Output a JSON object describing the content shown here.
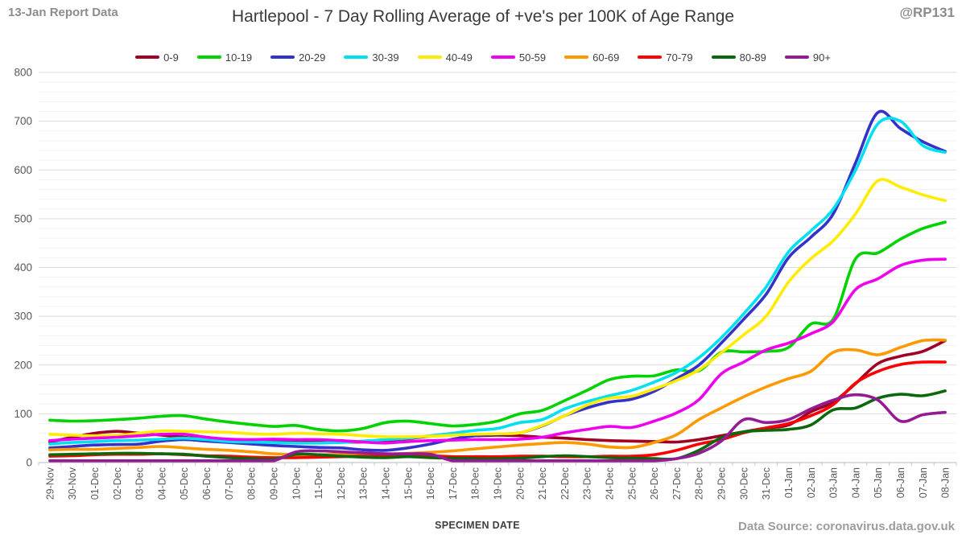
{
  "header": {
    "report_label": "13-Jan Report Data",
    "handle": "@RP131"
  },
  "title": "Hartlepool - 7 Day Rolling Average of +ve's per 100K of Age Range",
  "footer": {
    "xlabel": "SPECIMEN DATE",
    "source": "Data Source: coronavirus.data.gov.uk"
  },
  "colors": {
    "grid_minor": "#f2f2f2",
    "grid_major": "#dadada",
    "axis_line": "#c6c6c6",
    "tick_text": "#595959"
  },
  "chart_data": {
    "type": "line",
    "title": "Hartlepool - 7 Day Rolling Average of +ve's per 100K of Age Range",
    "xlabel": "SPECIMEN DATE",
    "ylabel": "",
    "ylim": [
      0,
      800
    ],
    "ytick_step": 100,
    "yminor_step": 20,
    "grid": true,
    "legend_position": "top",
    "x": [
      "29-Nov",
      "30-Nov",
      "01-Dec",
      "02-Dec",
      "03-Dec",
      "04-Dec",
      "05-Dec",
      "06-Dec",
      "07-Dec",
      "08-Dec",
      "09-Dec",
      "10-Dec",
      "11-Dec",
      "12-Dec",
      "13-Dec",
      "14-Dec",
      "15-Dec",
      "16-Dec",
      "17-Dec",
      "18-Dec",
      "19-Dec",
      "20-Dec",
      "21-Dec",
      "22-Dec",
      "23-Dec",
      "24-Dec",
      "25-Dec",
      "26-Dec",
      "27-Dec",
      "28-Dec",
      "29-Dec",
      "30-Dec",
      "31-Dec",
      "01-Jan",
      "02-Jan",
      "03-Jan",
      "04-Jan",
      "05-Jan",
      "06-Jan",
      "07-Jan",
      "08-Jan"
    ],
    "series": [
      {
        "name": "0-9",
        "color": "#a00025",
        "values": [
          42,
          52,
          60,
          64,
          60,
          56,
          52,
          48,
          45,
          43,
          44,
          43,
          42,
          42,
          42,
          45,
          49,
          54,
          57,
          55,
          56,
          55,
          52,
          50,
          47,
          45,
          44,
          43,
          42,
          47,
          55,
          63,
          71,
          77,
          104,
          124,
          162,
          203,
          218,
          228,
          250
        ]
      },
      {
        "name": "10-19",
        "color": "#00d300",
        "values": [
          87,
          85,
          86,
          88,
          91,
          95,
          96,
          89,
          83,
          78,
          74,
          76,
          68,
          65,
          70,
          82,
          85,
          80,
          75,
          78,
          85,
          100,
          107,
          127,
          148,
          170,
          177,
          178,
          190,
          188,
          226,
          227,
          228,
          236,
          284,
          294,
          418,
          430,
          458,
          480,
          493
        ]
      },
      {
        "name": "20-29",
        "color": "#3333cc",
        "values": [
          30,
          33,
          36,
          37,
          38,
          44,
          47,
          44,
          41,
          38,
          35,
          33,
          31,
          30,
          26,
          25,
          30,
          38,
          48,
          55,
          58,
          61,
          75,
          96,
          112,
          124,
          130,
          146,
          172,
          200,
          245,
          294,
          345,
          420,
          462,
          510,
          615,
          718,
          685,
          658,
          638
        ]
      },
      {
        "name": "30-39",
        "color": "#00e0f0",
        "values": [
          38,
          41,
          43,
          45,
          46,
          48,
          50,
          47,
          43,
          42,
          41,
          40,
          40,
          41,
          44,
          47,
          50,
          55,
          60,
          66,
          70,
          82,
          88,
          110,
          125,
          137,
          148,
          165,
          185,
          215,
          256,
          305,
          360,
          432,
          475,
          520,
          600,
          695,
          700,
          650,
          636
        ]
      },
      {
        "name": "40-49",
        "color": "#ffec00",
        "values": [
          58,
          56,
          55,
          56,
          60,
          65,
          64,
          63,
          62,
          59,
          58,
          60,
          59,
          58,
          55,
          53,
          53,
          54,
          56,
          58,
          59,
          61,
          76,
          96,
          118,
          132,
          136,
          151,
          168,
          190,
          225,
          262,
          300,
          370,
          418,
          455,
          510,
          578,
          565,
          549,
          537
        ]
      },
      {
        "name": "50-59",
        "color": "#ef00ef",
        "values": [
          45,
          48,
          50,
          52,
          55,
          58,
          58,
          52,
          48,
          47,
          48,
          47,
          47,
          45,
          42,
          40,
          43,
          45,
          46,
          47,
          47,
          48,
          52,
          61,
          68,
          74,
          72,
          85,
          102,
          129,
          182,
          206,
          231,
          245,
          264,
          289,
          355,
          377,
          404,
          415,
          417
        ]
      },
      {
        "name": "60-69",
        "color": "#ff9900",
        "values": [
          26,
          27,
          27,
          29,
          31,
          33,
          30,
          27,
          25,
          22,
          18,
          16,
          16,
          17,
          17,
          17,
          19,
          21,
          24,
          28,
          32,
          36,
          39,
          41,
          38,
          32,
          31,
          41,
          57,
          88,
          112,
          135,
          155,
          172,
          187,
          226,
          231,
          221,
          236,
          250,
          251
        ]
      },
      {
        "name": "70-79",
        "color": "#ff0000",
        "values": [
          13,
          14,
          16,
          17,
          17,
          18,
          16,
          14,
          13,
          11,
          10,
          10,
          11,
          12,
          13,
          13,
          14,
          14,
          12,
          12,
          12,
          13,
          13,
          12,
          12,
          13,
          13,
          16,
          25,
          38,
          47,
          61,
          71,
          80,
          96,
          119,
          163,
          187,
          201,
          206,
          206
        ]
      },
      {
        "name": "80-89",
        "color": "#0c680c",
        "values": [
          16,
          17,
          18,
          19,
          19,
          18,
          17,
          13,
          10,
          8,
          7,
          17,
          16,
          13,
          11,
          10,
          12,
          10,
          9,
          8,
          8,
          9,
          12,
          14,
          12,
          10,
          9,
          8,
          8,
          25,
          51,
          63,
          66,
          68,
          77,
          108,
          112,
          132,
          140,
          137,
          147
        ]
      },
      {
        "name": "90+",
        "color": "#951b95",
        "values": [
          3,
          3,
          3,
          3,
          3,
          3,
          3,
          3,
          2,
          2,
          3,
          22,
          24,
          22,
          20,
          18,
          18,
          17,
          2,
          0,
          0,
          0,
          0,
          0,
          0,
          2,
          2,
          0,
          8,
          19,
          44,
          88,
          82,
          88,
          110,
          128,
          139,
          128,
          85,
          98,
          103
        ]
      }
    ]
  }
}
